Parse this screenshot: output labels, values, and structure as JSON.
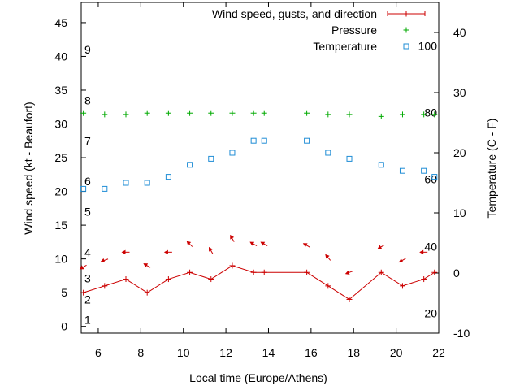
{
  "chart_data": {
    "type": "line",
    "xlabel": "Local time (Europe/Athens)",
    "ylabel": "Wind speed (kt - Beaufort)",
    "y2label": "Temperature (C - F)",
    "xlim": [
      5.2,
      22
    ],
    "ylim": [
      -1,
      48
    ],
    "y2lim": [
      -10,
      45
    ],
    "x_ticks": [
      6,
      8,
      10,
      12,
      14,
      16,
      18,
      20,
      22
    ],
    "y_ticks": [
      0,
      5,
      10,
      15,
      20,
      25,
      30,
      35,
      40,
      45
    ],
    "y2_ticks": [
      -10,
      0,
      10,
      20,
      30,
      40
    ],
    "beaufort_labels": [
      {
        "label": "1",
        "y": 1
      },
      {
        "label": "2",
        "y": 4
      },
      {
        "label": "3",
        "y": 7.1
      },
      {
        "label": "4",
        "y": 11
      },
      {
        "label": "5",
        "y": 17
      },
      {
        "label": "6",
        "y": 21.5
      },
      {
        "label": "7",
        "y": 27.5
      },
      {
        "label": "8",
        "y": 33.5
      },
      {
        "label": "9",
        "y": 41
      }
    ],
    "fahrenheit_labels": [
      {
        "label": "20",
        "y2": -6.7
      },
      {
        "label": "40",
        "y2": 4.4
      },
      {
        "label": "60",
        "y2": 15.6
      },
      {
        "label": "80",
        "y2": 26.7
      },
      {
        "label": "100",
        "y2": 37.8
      }
    ],
    "legend": [
      {
        "label": "Wind speed, gusts, and direction",
        "color": "#cc0000",
        "marker": "line-plus"
      },
      {
        "label": "Pressure",
        "color": "#00aa00",
        "marker": "plus"
      },
      {
        "label": "Temperature",
        "color": "#1f8dd6",
        "marker": "square"
      }
    ],
    "legend_position": "top-right",
    "series": [
      {
        "name": "Wind speed, gusts, and direction",
        "color": "#cc0000",
        "axis": "y",
        "x": [
          5.3,
          6.3,
          7.3,
          8.3,
          9.3,
          10.3,
          11.3,
          12.3,
          13.3,
          13.8,
          15.8,
          16.8,
          17.8,
          19.3,
          20.3,
          21.3,
          21.8
        ],
        "y": [
          5,
          6,
          7,
          5,
          7,
          8,
          7,
          9,
          8,
          8,
          8,
          6,
          4,
          8,
          6,
          7,
          8
        ]
      },
      {
        "name": "Pressure",
        "color": "#00aa00",
        "axis": "y",
        "x": [
          5.3,
          6.3,
          7.3,
          8.3,
          9.3,
          10.3,
          11.3,
          12.3,
          13.3,
          13.8,
          15.8,
          16.8,
          17.8,
          19.3,
          20.3,
          21.3,
          21.8
        ],
        "y": [
          31.6,
          31.4,
          31.4,
          31.6,
          31.6,
          31.6,
          31.6,
          31.6,
          31.6,
          31.6,
          31.6,
          31.4,
          31.4,
          31.1,
          31.4,
          31.4,
          31.4
        ]
      },
      {
        "name": "Temperature",
        "color": "#1f8dd6",
        "axis": "y2",
        "x": [
          5.3,
          6.3,
          7.3,
          8.3,
          9.3,
          10.3,
          11.3,
          12.3,
          13.3,
          13.8,
          15.8,
          16.8,
          17.8,
          19.3,
          20.3,
          21.3,
          21.8
        ],
        "y": [
          14,
          14,
          15,
          15,
          16,
          18,
          19,
          20,
          22,
          22,
          22,
          20,
          19,
          18,
          17,
          17,
          16
        ]
      }
    ],
    "wind_direction": {
      "color": "#cc0000",
      "x": [
        5.3,
        6.3,
        7.3,
        8.3,
        9.3,
        10.3,
        11.3,
        12.3,
        13.3,
        13.8,
        15.8,
        16.8,
        17.8,
        19.3,
        20.3,
        21.3
      ],
      "y": [
        8.8,
        9.8,
        11,
        9,
        11,
        12.2,
        11.2,
        13,
        12.2,
        12.2,
        12,
        10.2,
        8,
        11.8,
        9.8,
        11
      ],
      "angle_deg": [
        210,
        200,
        180,
        150,
        180,
        135,
        120,
        120,
        150,
        150,
        150,
        130,
        200,
        210,
        210,
        180
      ]
    }
  }
}
